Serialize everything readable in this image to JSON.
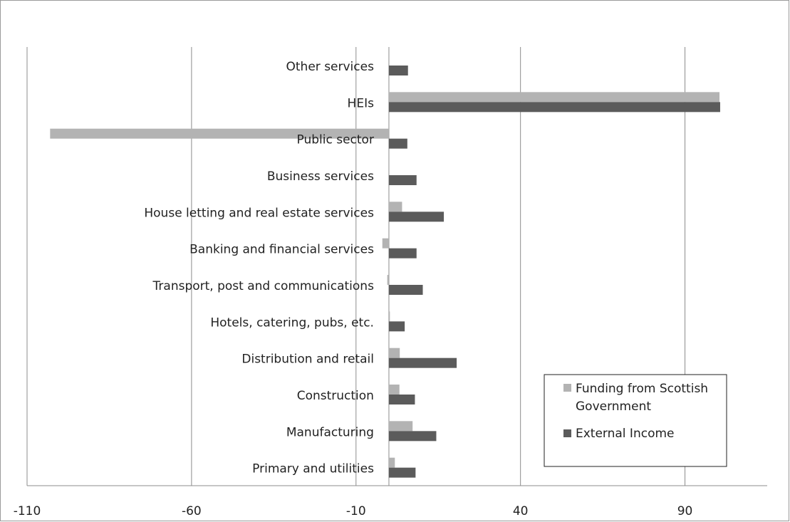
{
  "chart_data": {
    "type": "bar",
    "orientation": "horizontal",
    "title": "",
    "xlabel": "",
    "ylabel": "",
    "xlim": [
      -110,
      115
    ],
    "xticks": [
      -110,
      -60,
      -10,
      40,
      90
    ],
    "grid": true,
    "legend_position": "bottom-right",
    "categories": [
      "Other services",
      "HEIs",
      "Public sector",
      "Business services",
      "House letting and real estate services",
      "Banking and financial services",
      "Transport, post and communications",
      "Hotels, catering, pubs, etc.",
      "Distribution and retail",
      "Construction",
      "Manufacturing",
      "Primary and utilities"
    ],
    "series": [
      {
        "name": "Funding from Scottish Government",
        "color": "#b3b3b3",
        "values": [
          0,
          100.5,
          -103,
          0,
          4,
          -2,
          -0.5,
          0.3,
          3.3,
          3.2,
          7.2,
          1.8
        ]
      },
      {
        "name": "External Income",
        "color": "#5b5b5b",
        "values": [
          5.8,
          100.7,
          5.6,
          8.4,
          16.7,
          8.4,
          10.3,
          4.8,
          20.6,
          7.9,
          14.4,
          8.1
        ]
      }
    ]
  }
}
